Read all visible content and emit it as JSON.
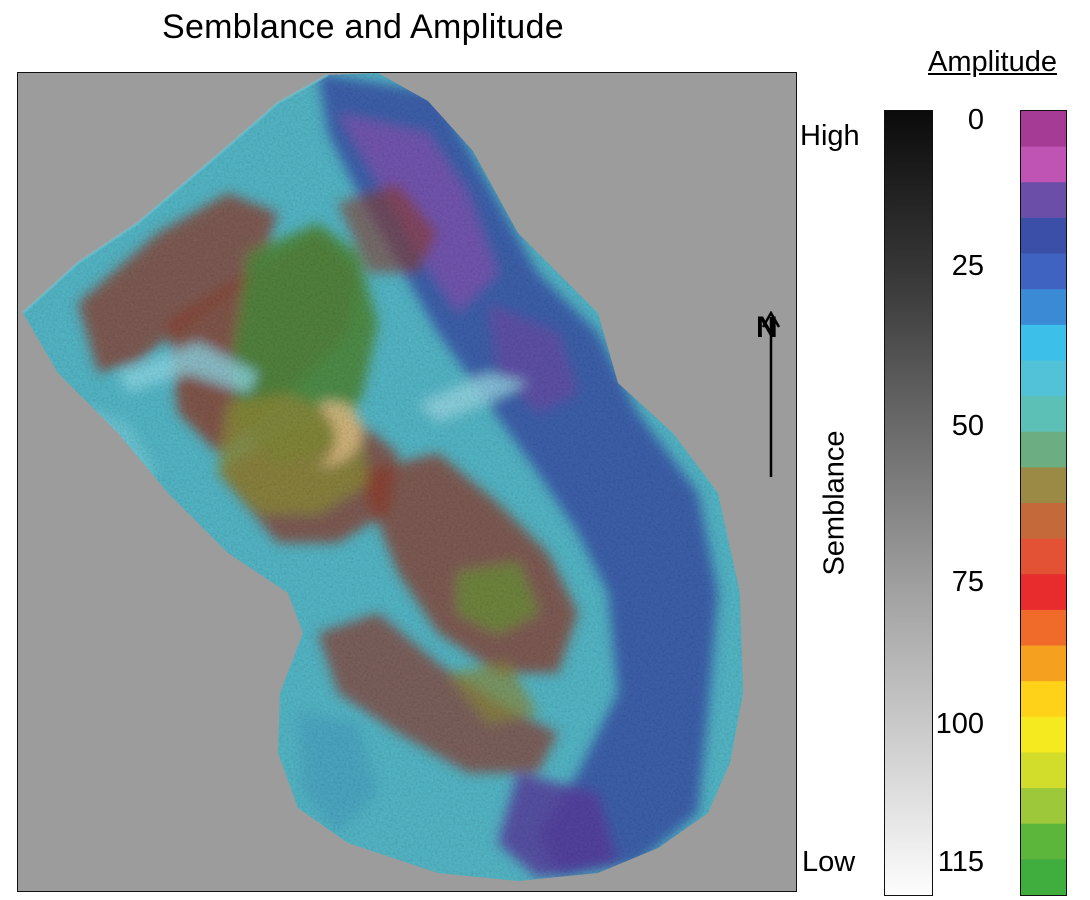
{
  "title": "Semblance and Amplitude",
  "north_label": "N",
  "semblance_colorbar": {
    "label": "Semblance",
    "high_label": "High",
    "low_label": "Low"
  },
  "amplitude_colorbar": {
    "label": "Amplitude",
    "ticks": [
      "0",
      "25",
      "50",
      "75",
      "100",
      "115"
    ],
    "colors_top_to_bottom": [
      "#a63b96",
      "#c054b4",
      "#6a4ea8",
      "#3b4fa8",
      "#3f63c0",
      "#3b8ad6",
      "#3cc0ea",
      "#52c2d8",
      "#5cc0b6",
      "#6cae82",
      "#9a8a46",
      "#c46a3a",
      "#e45236",
      "#e82c2e",
      "#f06a2a",
      "#f6a020",
      "#ffd21a",
      "#f5ea20",
      "#d2dc2a",
      "#9cc83a",
      "#5cb63c",
      "#3fae3e"
    ]
  },
  "map_colors": {
    "background": "#9c9c9c",
    "cyan": "#55b9c9",
    "blue": "#3a52a8",
    "purple": "#7b56b3",
    "brown": "#8f3d2c",
    "green": "#4f8a3c",
    "olive": "#8d8a3a"
  }
}
